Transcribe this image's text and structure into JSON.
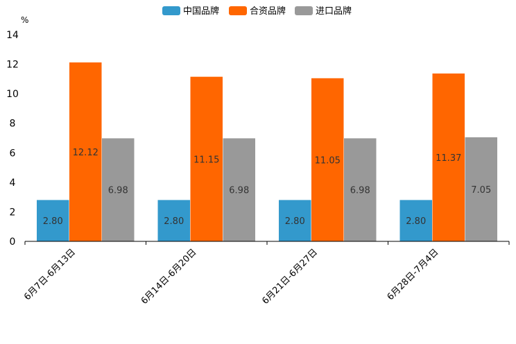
{
  "chart_data": {
    "type": "bar",
    "title": "",
    "unit": "%",
    "xlabel": "",
    "ylabel": "%",
    "ylim": [
      0,
      14
    ],
    "yticks": [
      0,
      2,
      4,
      6,
      8,
      10,
      12,
      14
    ],
    "categories": [
      "6月7日-6月13日",
      "6月14日-6月20日",
      "6月21日-6月27日",
      "6月28日-7月4日"
    ],
    "series": [
      {
        "name": "中国品牌",
        "color": "#3399cc",
        "values": [
          2.8,
          2.8,
          2.8,
          2.8
        ],
        "labels": [
          "2.80",
          "2.80",
          "2.80",
          "2.80"
        ]
      },
      {
        "name": "合资品牌",
        "color": "#ff6600",
        "values": [
          12.12,
          11.15,
          11.05,
          11.37
        ],
        "labels": [
          "12.12",
          "11.15",
          "11.05",
          "11.37"
        ]
      },
      {
        "name": "进口品牌",
        "color": "#999999",
        "values": [
          6.98,
          6.98,
          6.98,
          7.05
        ],
        "labels": [
          "6.98",
          "6.98",
          "6.98",
          "7.05"
        ]
      }
    ],
    "legend": "top-center",
    "grid": false
  }
}
